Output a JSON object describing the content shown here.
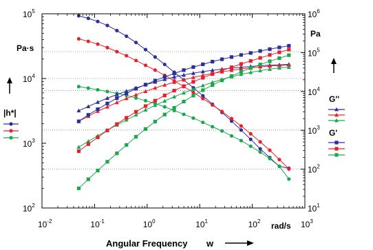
{
  "chart_data": {
    "type": "line",
    "xlabel": "Angular Frequency",
    "xlabel_symbol": "w",
    "x_unit": "rad/s",
    "left_axis_unit": "Pa·s",
    "right_axis_unit": "Pa",
    "x_scale": "log",
    "y_scale": "log",
    "xlim": [
      0.01,
      1000
    ],
    "ylim_left": [
      100,
      100000
    ],
    "ylim_right": [
      10,
      1000000
    ],
    "x_ticks": [
      {
        "base": "10",
        "exp": "-2"
      },
      {
        "base": "10",
        "exp": "-1"
      },
      {
        "base": "10",
        "exp": "0"
      },
      {
        "base": "10",
        "exp": "1"
      },
      {
        "base": "10",
        "exp": "2"
      },
      {
        "base": "10",
        "exp": "3"
      }
    ],
    "y_ticks_left": [
      {
        "base": "10",
        "exp": "2"
      },
      {
        "base": "10",
        "exp": "3"
      },
      {
        "base": "10",
        "exp": "4"
      },
      {
        "base": "10",
        "exp": "5"
      }
    ],
    "y_ticks_right": [
      {
        "base": "10",
        "exp": "1"
      },
      {
        "base": "10",
        "exp": "2"
      },
      {
        "base": "10",
        "exp": "3"
      },
      {
        "base": "10",
        "exp": "4"
      },
      {
        "base": "10",
        "exp": "5"
      },
      {
        "base": "10",
        "exp": "6"
      }
    ],
    "grid": "dotted horizontal at left-axis values",
    "grid_values_left": [
      400,
      1600,
      6500,
      10000,
      26000
    ],
    "legend_groups": [
      {
        "label": "|h*|",
        "marker": "circle",
        "position": "left"
      },
      {
        "label": "G''",
        "marker": "triangle",
        "position": "right-top"
      },
      {
        "label": "G'",
        "marker": "square",
        "position": "right-bottom"
      }
    ],
    "colors": {
      "blue": "#2b2e9c",
      "red": "#e8202a",
      "green": "#1aa84c"
    },
    "x": [
      0.05,
      0.076,
      0.115,
      0.175,
      0.266,
      0.404,
      0.614,
      0.933,
      1.418,
      2.155,
      3.275,
      4.977,
      7.56,
      11.49,
      17.46,
      26.5,
      40.3,
      61.3,
      93.1,
      141.5,
      215,
      327,
      497
    ],
    "series": [
      {
        "name": "|h*|",
        "axis": "left",
        "marker": "circle",
        "color": "#2b2e9c",
        "values": [
          93000,
          85000,
          76000,
          66000,
          55000,
          45000,
          36000,
          28000,
          21500,
          16500,
          12500,
          9500,
          7200,
          5400,
          4000,
          3000,
          2200,
          1600,
          1150,
          820,
          600,
          440,
          410
        ]
      },
      {
        "name": "|h*|",
        "axis": "left",
        "marker": "circle",
        "color": "#e8202a",
        "values": [
          41000,
          37500,
          34000,
          30000,
          26000,
          22500,
          19000,
          16000,
          13500,
          11200,
          9200,
          7500,
          6100,
          4900,
          3900,
          3100,
          2400,
          1850,
          1400,
          1050,
          780,
          560,
          400
        ]
      },
      {
        "name": "|h*|",
        "axis": "left",
        "marker": "circle",
        "color": "#1aa84c",
        "values": [
          7500,
          7100,
          6700,
          6300,
          5900,
          5500,
          5000,
          4550,
          4100,
          3650,
          3200,
          2800,
          2450,
          2100,
          1800,
          1550,
          1300,
          1100,
          900,
          730,
          580,
          440,
          280
        ]
      },
      {
        "name": "G''",
        "axis": "right",
        "marker": "triangle",
        "color": "#2b2e9c",
        "values": [
          3200,
          4100,
          5300,
          6700,
          8300,
          10200,
          12300,
          14800,
          17500,
          20500,
          23500,
          26500,
          29500,
          32500,
          35000,
          37500,
          40000,
          42000,
          44000,
          46000,
          47500,
          48500,
          50000
        ]
      },
      {
        "name": "G''",
        "axis": "right",
        "marker": "triangle",
        "color": "#e8202a",
        "values": [
          1700,
          2300,
          3100,
          4000,
          5200,
          6600,
          8200,
          10100,
          12300,
          14700,
          17300,
          20000,
          23000,
          26000,
          29000,
          32000,
          35000,
          38000,
          40500,
          43000,
          45000,
          46500,
          48000
        ]
      },
      {
        "name": "G''",
        "axis": "right",
        "marker": "triangle",
        "color": "#1aa84c",
        "values": [
          370,
          520,
          720,
          1000,
          1370,
          1850,
          2500,
          3350,
          4400,
          5700,
          7300,
          9200,
          11500,
          14200,
          17200,
          20500,
          24000,
          27700,
          31000,
          34500,
          37500,
          40500,
          42000
        ]
      },
      {
        "name": "G'",
        "axis": "right",
        "marker": "square",
        "color": "#2b2e9c",
        "values": [
          1700,
          2500,
          3500,
          4900,
          6700,
          9000,
          11800,
          15000,
          19000,
          23800,
          29000,
          35500,
          42500,
          50000,
          58500,
          67500,
          77000,
          87000,
          98000,
          110000,
          123000,
          136000,
          150000
        ]
      },
      {
        "name": "G'",
        "axis": "right",
        "marker": "square",
        "color": "#e8202a",
        "values": [
          290,
          440,
          660,
          990,
          1450,
          2100,
          3000,
          4200,
          5800,
          7900,
          10500,
          13700,
          17700,
          22500,
          28000,
          34500,
          42000,
          51000,
          61000,
          73000,
          87000,
          102000,
          120000
        ]
      },
      {
        "name": "G'",
        "axis": "right",
        "marker": "square",
        "color": "#1aa84c",
        "values": [
          32,
          55,
          92,
          155,
          255,
          420,
          680,
          1080,
          1680,
          2550,
          3800,
          5500,
          7800,
          10800,
          14600,
          19300,
          25000,
          32000,
          40000,
          49500,
          60000,
          72000,
          86000
        ]
      }
    ]
  }
}
